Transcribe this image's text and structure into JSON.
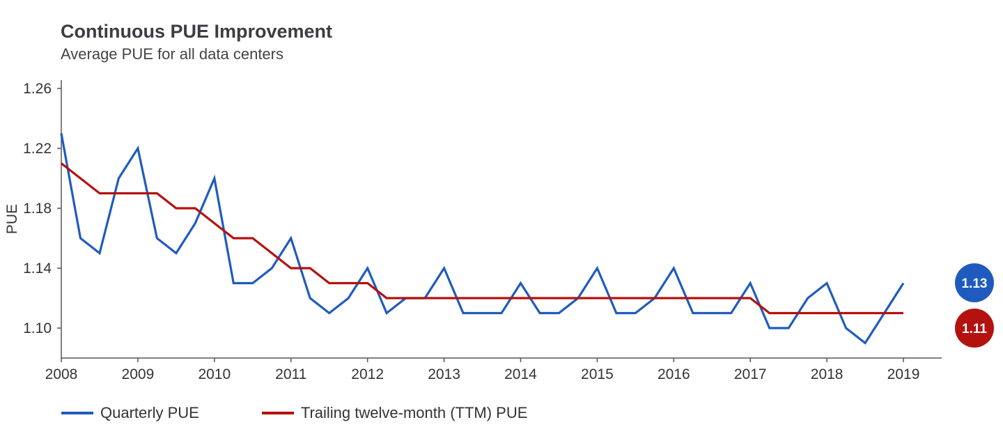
{
  "colors": {
    "quarterly": "#1f5bbf",
    "ttm": "#b3120f",
    "axis": "#555555",
    "text": "#333333"
  },
  "chart_data": {
    "type": "line",
    "title": "Continuous PUE Improvement",
    "subtitle": "Average PUE for all data centers",
    "xlabel": "",
    "ylabel": "PUE",
    "x_ticks": [
      "2008",
      "2009",
      "2010",
      "2011",
      "2012",
      "2013",
      "2014",
      "2015",
      "2016",
      "2017",
      "2018",
      "2019"
    ],
    "y_ticks": [
      "1.26",
      "1.22",
      "1.18",
      "1.14",
      "1.10"
    ],
    "xlim": [
      2008.0,
      2019.5
    ],
    "ylim": [
      1.08,
      1.265
    ],
    "grid": false,
    "legend_position": "bottom-left",
    "x": [
      2008.0,
      2008.25,
      2008.5,
      2008.75,
      2009.0,
      2009.25,
      2009.5,
      2009.75,
      2010.0,
      2010.25,
      2010.5,
      2010.75,
      2011.0,
      2011.25,
      2011.5,
      2011.75,
      2012.0,
      2012.25,
      2012.5,
      2012.75,
      2013.0,
      2013.25,
      2013.5,
      2013.75,
      2014.0,
      2014.25,
      2014.5,
      2014.75,
      2015.0,
      2015.25,
      2015.5,
      2015.75,
      2016.0,
      2016.25,
      2016.5,
      2016.75,
      2017.0,
      2017.25,
      2017.5,
      2017.75,
      2018.0,
      2018.25,
      2018.5,
      2018.75,
      2019.0,
      2019.25,
      2019.5
    ],
    "series": [
      {
        "name": "Quarterly PUE",
        "color": "#1f5bbf",
        "end_label": "1.13",
        "values": [
          1.23,
          1.16,
          1.15,
          1.2,
          1.22,
          1.16,
          1.15,
          1.17,
          1.2,
          1.13,
          1.13,
          1.14,
          1.16,
          1.12,
          1.11,
          1.12,
          1.14,
          1.11,
          1.12,
          1.12,
          1.14,
          1.11,
          1.11,
          1.11,
          1.13,
          1.11,
          1.11,
          1.12,
          1.14,
          1.11,
          1.11,
          1.12,
          1.14,
          1.11,
          1.11,
          1.11,
          1.13,
          1.1,
          1.1,
          1.12,
          1.13,
          1.1,
          1.09,
          1.11,
          1.13,
          null,
          null
        ]
      },
      {
        "name": "Trailing twelve-month (TTM) PUE",
        "color": "#b3120f",
        "end_label": "1.11",
        "values": [
          1.21,
          1.2,
          1.19,
          1.19,
          1.19,
          1.19,
          1.18,
          1.18,
          1.17,
          1.16,
          1.16,
          1.15,
          1.14,
          1.14,
          1.13,
          1.13,
          1.13,
          1.12,
          1.12,
          1.12,
          1.12,
          1.12,
          1.12,
          1.12,
          1.12,
          1.12,
          1.12,
          1.12,
          1.12,
          1.12,
          1.12,
          1.12,
          1.12,
          1.12,
          1.12,
          1.12,
          1.12,
          1.11,
          1.11,
          1.11,
          1.11,
          1.11,
          1.11,
          1.11,
          1.11,
          null,
          null
        ]
      }
    ]
  }
}
